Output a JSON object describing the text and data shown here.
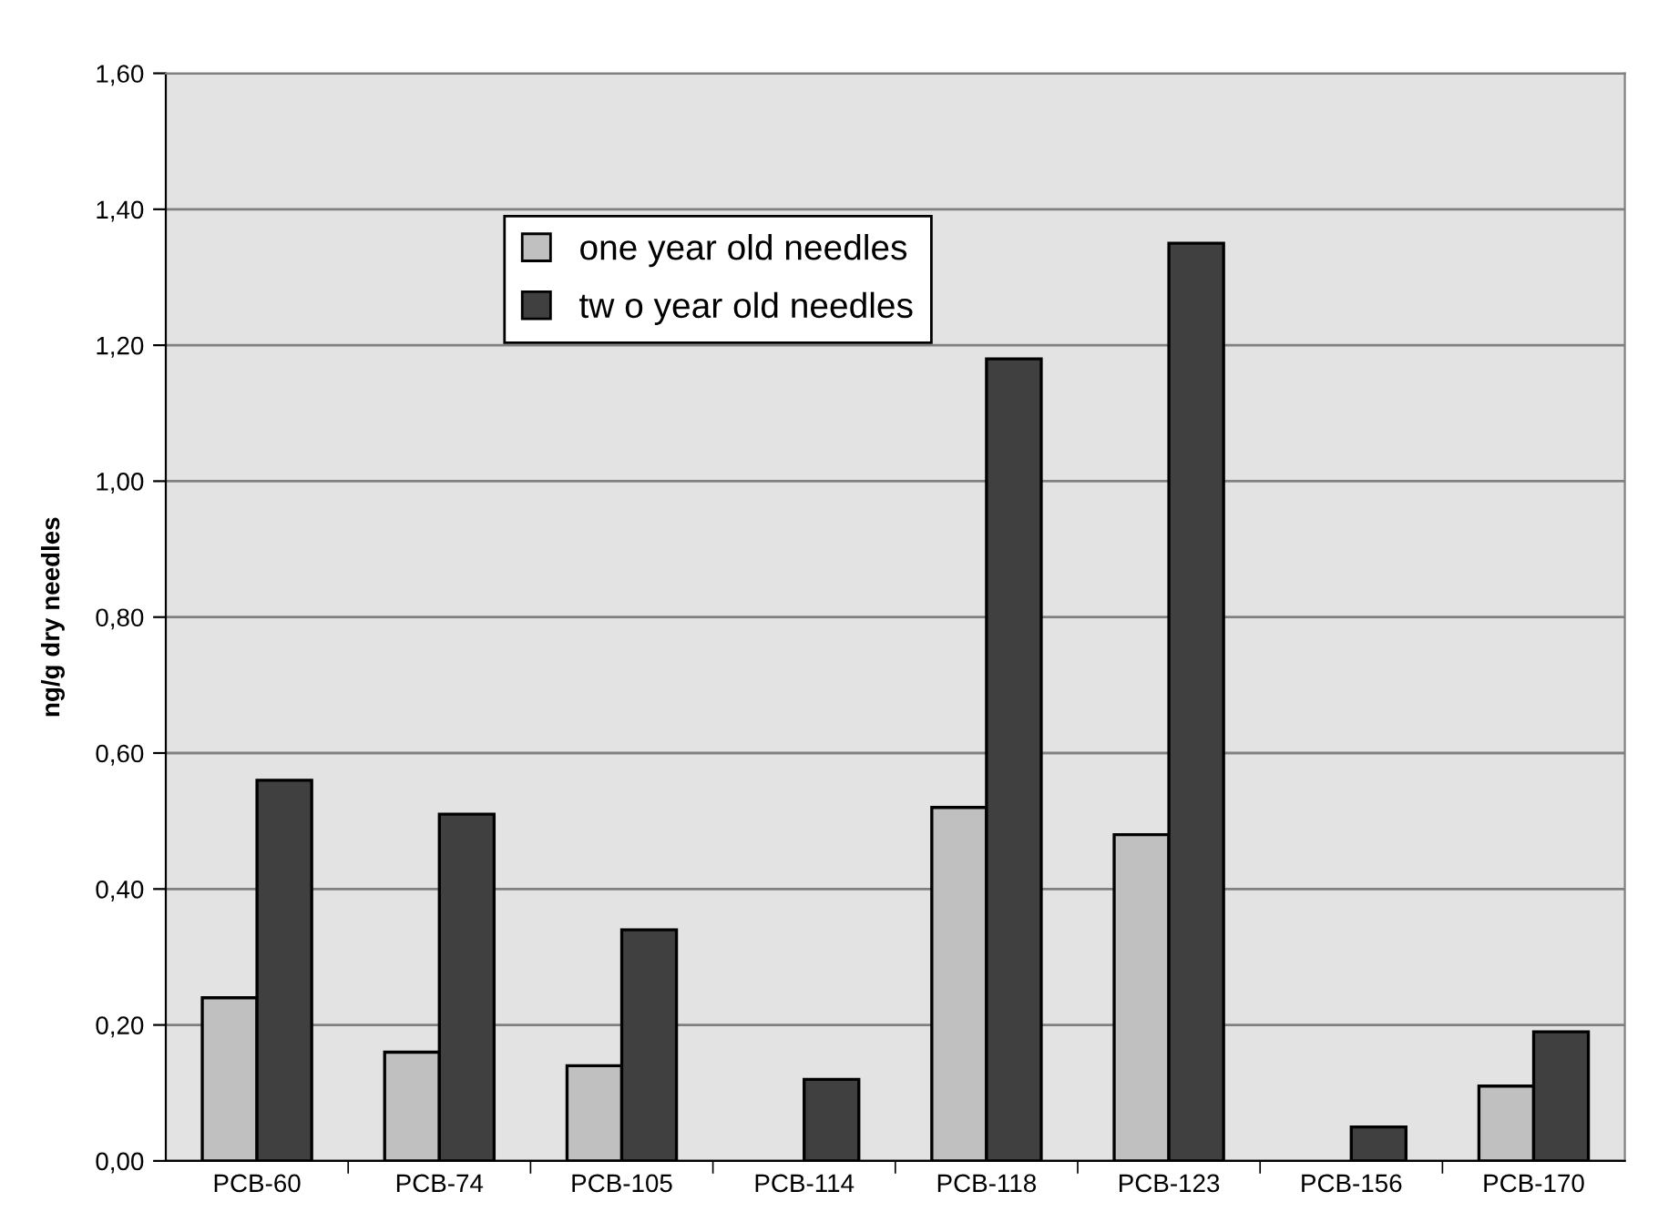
{
  "chart_data": {
    "type": "bar",
    "ylabel": "ng/g dry needles",
    "categories": [
      "PCB-60",
      "PCB-74",
      "PCB-105",
      "PCB-114",
      "PCB-118",
      "PCB-123",
      "PCB-156",
      "PCB-170"
    ],
    "series": [
      {
        "name": "one year old needles",
        "color": "#c0c0c0",
        "values": [
          0.24,
          0.16,
          0.14,
          null,
          0.52,
          0.48,
          null,
          0.11
        ]
      },
      {
        "name": "tw o year old needles",
        "color": "#404040",
        "values": [
          0.56,
          0.51,
          0.34,
          0.12,
          1.18,
          1.35,
          0.05,
          0.19
        ]
      }
    ],
    "ylim": [
      0,
      1.6
    ],
    "yticks": [
      {
        "value": 0,
        "label": "0,00"
      },
      {
        "value": 0.2,
        "label": "0,20"
      },
      {
        "value": 0.4,
        "label": "0,40"
      },
      {
        "value": 0.6,
        "label": "0,60"
      },
      {
        "value": 0.8,
        "label": "0,80"
      },
      {
        "value": 1.0,
        "label": "1,00"
      },
      {
        "value": 1.2,
        "label": "1,20"
      },
      {
        "value": 1.4,
        "label": "1,40"
      },
      {
        "value": 1.6,
        "label": "1,60"
      }
    ],
    "grid": "y",
    "legend": "top"
  }
}
